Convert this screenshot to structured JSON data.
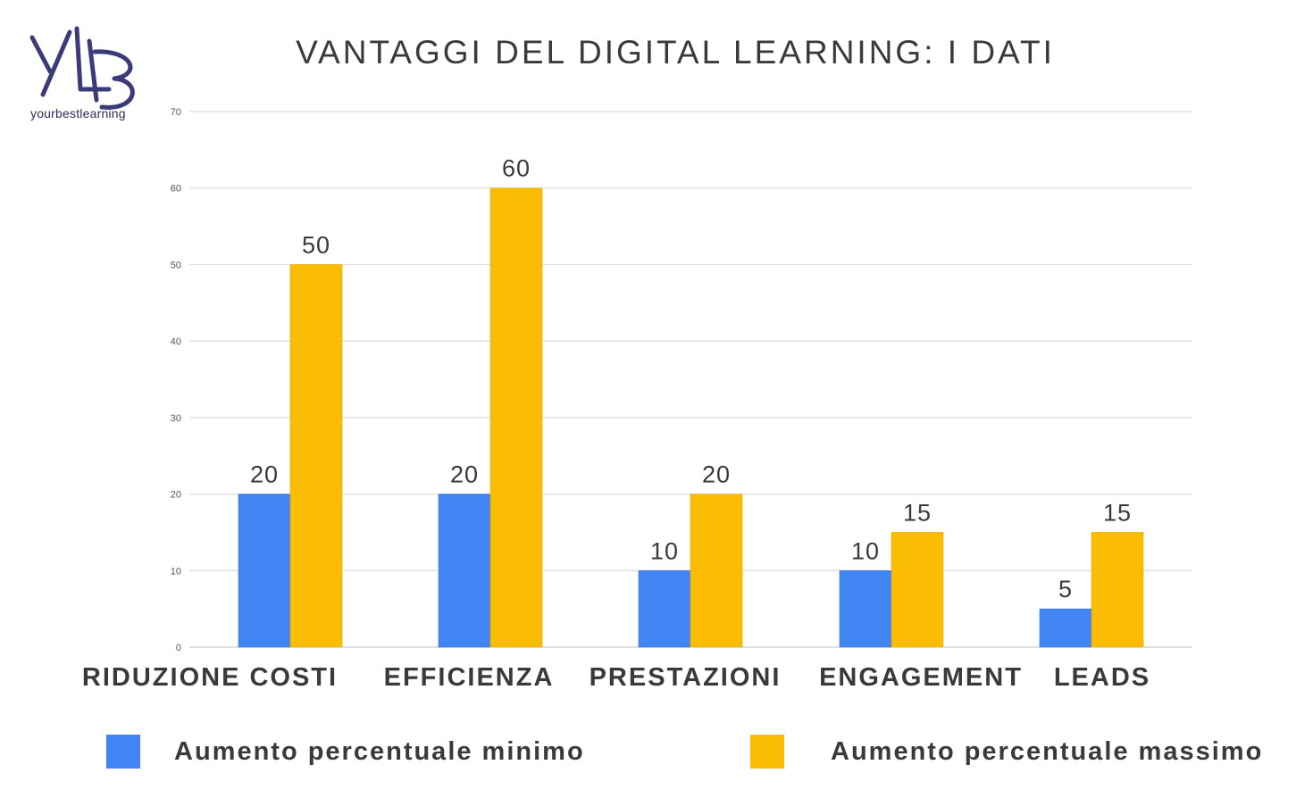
{
  "logo": {
    "text": "yourbestlearning",
    "icon": "ybl-monogram-logo",
    "color": "#3b3b7a"
  },
  "chart_data": {
    "type": "bar",
    "title": "VANTAGGI DEL DIGITAL LEARNING: I DATI",
    "categories": [
      "RIDUZIONE COSTI",
      "EFFICIENZA",
      "PRESTAZIONI",
      "ENGAGEMENT",
      "LEADS"
    ],
    "series": [
      {
        "name": "Aumento percentuale minimo",
        "values": [
          20,
          20,
          10,
          10,
          5
        ],
        "color": "#4285f4"
      },
      {
        "name": "Aumento percentuale massimo",
        "values": [
          50,
          60,
          20,
          15,
          15
        ],
        "color": "#fbbc04"
      }
    ],
    "ylim": [
      0,
      70
    ],
    "yticks": [
      0,
      10,
      20,
      30,
      40,
      50,
      60,
      70
    ],
    "grid": true,
    "data_labels": true,
    "legend": "bottom"
  }
}
